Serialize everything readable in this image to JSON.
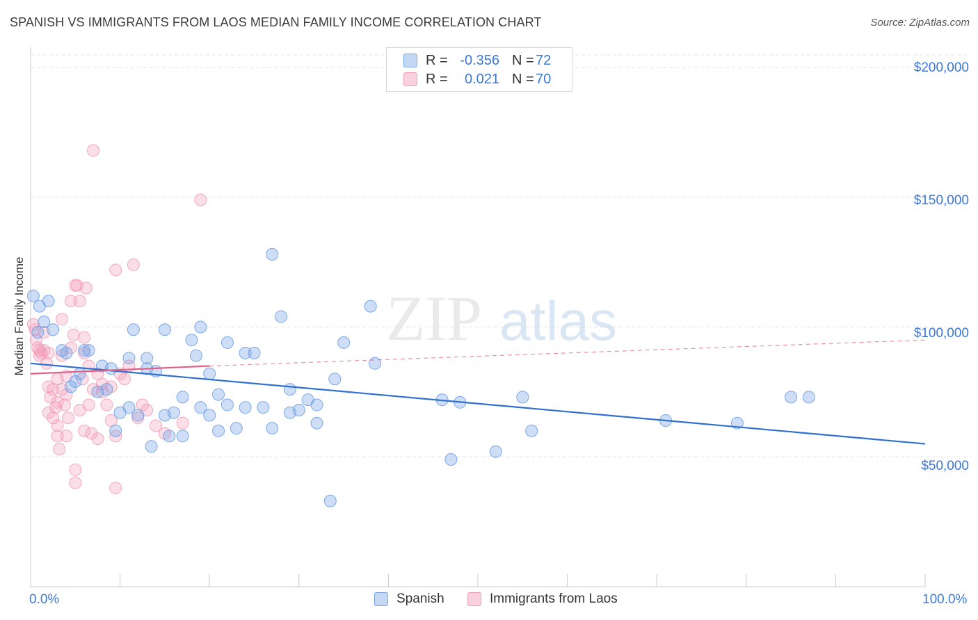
{
  "title": "SPANISH VS IMMIGRANTS FROM LAOS MEDIAN FAMILY INCOME CORRELATION CHART",
  "source": "Source: ZipAtlas.com",
  "watermark": {
    "zip": "ZIP",
    "atlas": "atlas"
  },
  "legend_top": [
    {
      "r_label": "R =",
      "r_value": "-0.356",
      "n_label": "N =",
      "n_value": "72"
    },
    {
      "r_label": "R =",
      "r_value": "0.021",
      "n_label": "N =",
      "n_value": "70"
    }
  ],
  "legend_bottom": [
    {
      "label": "Spanish"
    },
    {
      "label": "Immigrants from Laos"
    }
  ],
  "axis": {
    "ylabel": "Median Family Income",
    "y_ticks": [
      "$200,000",
      "$150,000",
      "$100,000",
      "$50,000"
    ],
    "x_min_label": "0.0%",
    "x_max_label": "100.0%"
  },
  "colors": {
    "spanish": "#6fa0e6",
    "spanish_line": "#2f6fd0",
    "laos": "#f29bb6",
    "laos_line": "#e0608a",
    "accent": "#3b78d8"
  },
  "chart_data": {
    "type": "scatter",
    "title": "SPANISH VS IMMIGRANTS FROM LAOS MEDIAN FAMILY INCOME CORRELATION CHART",
    "xlabel": "",
    "ylabel": "Median Family Income",
    "xlim": [
      0,
      100
    ],
    "ylim": [
      0,
      210000
    ],
    "grid": true,
    "legend_position": "top-center",
    "series": [
      {
        "name": "Spanish",
        "r": -0.356,
        "n": 72,
        "trend": {
          "x0": 0,
          "y0": 86000,
          "x1": 100,
          "y1": 55000
        },
        "points": [
          [
            0.3,
            112000
          ],
          [
            1.0,
            108000
          ],
          [
            1.5,
            102000
          ],
          [
            2.0,
            110000
          ],
          [
            2.5,
            99000
          ],
          [
            0.8,
            98000
          ],
          [
            3.5,
            91000
          ],
          [
            4.0,
            90000
          ],
          [
            4.5,
            77000
          ],
          [
            5.0,
            79000
          ],
          [
            5.5,
            82000
          ],
          [
            6.0,
            91000
          ],
          [
            6.5,
            91000
          ],
          [
            7.5,
            75000
          ],
          [
            8.0,
            85000
          ],
          [
            8.5,
            76000
          ],
          [
            9.0,
            84000
          ],
          [
            9.5,
            60000
          ],
          [
            10,
            67000
          ],
          [
            11,
            88000
          ],
          [
            11,
            69000
          ],
          [
            11.5,
            99000
          ],
          [
            12,
            66000
          ],
          [
            13,
            84000
          ],
          [
            13,
            88000
          ],
          [
            13.5,
            54000
          ],
          [
            14,
            83000
          ],
          [
            15,
            66000
          ],
          [
            15,
            99000
          ],
          [
            15.5,
            58000
          ],
          [
            16,
            67000
          ],
          [
            17,
            58000
          ],
          [
            17,
            73000
          ],
          [
            18,
            95000
          ],
          [
            18.5,
            89000
          ],
          [
            19,
            69000
          ],
          [
            19,
            100000
          ],
          [
            20,
            82000
          ],
          [
            20,
            66000
          ],
          [
            21,
            74000
          ],
          [
            21,
            60000
          ],
          [
            22,
            70000
          ],
          [
            22,
            94000
          ],
          [
            23,
            61000
          ],
          [
            24,
            69000
          ],
          [
            24,
            90000
          ],
          [
            25,
            90000
          ],
          [
            26,
            69000
          ],
          [
            27,
            61000
          ],
          [
            27,
            128000
          ],
          [
            28,
            104000
          ],
          [
            29,
            76000
          ],
          [
            29,
            67000
          ],
          [
            30,
            68000
          ],
          [
            31,
            72000
          ],
          [
            32,
            63000
          ],
          [
            32,
            70000
          ],
          [
            33.5,
            33000
          ],
          [
            34,
            80000
          ],
          [
            35,
            94000
          ],
          [
            38,
            108000
          ],
          [
            38.5,
            86000
          ],
          [
            46,
            72000
          ],
          [
            47,
            49000
          ],
          [
            48,
            71000
          ],
          [
            52,
            52000
          ],
          [
            55,
            73000
          ],
          [
            56,
            60000
          ],
          [
            71,
            64000
          ],
          [
            79,
            63000
          ],
          [
            85,
            73000
          ],
          [
            87,
            73000
          ]
        ]
      },
      {
        "name": "Immigrants from Laos",
        "r": 0.021,
        "n": 70,
        "trend": {
          "x0": 0,
          "y0": 82000,
          "x1": 20,
          "y1": 85000,
          "dashed_to": {
            "x": 100,
            "y": 95000
          }
        },
        "points": [
          [
            0.3,
            101000
          ],
          [
            0.5,
            99000
          ],
          [
            0.6,
            95000
          ],
          [
            0.8,
            92000
          ],
          [
            1.0,
            89000
          ],
          [
            1.0,
            91000
          ],
          [
            1.2,
            90000
          ],
          [
            1.5,
            91000
          ],
          [
            1.5,
            98000
          ],
          [
            1.8,
            86000
          ],
          [
            2.0,
            90000
          ],
          [
            2.0,
            77000
          ],
          [
            2.2,
            73000
          ],
          [
            2.5,
            76000
          ],
          [
            2.5,
            65000
          ],
          [
            2.8,
            69000
          ],
          [
            3.0,
            80000
          ],
          [
            3.0,
            58000
          ],
          [
            3.0,
            62000
          ],
          [
            3.2,
            53000
          ],
          [
            3.5,
            76000
          ],
          [
            3.5,
            89000
          ],
          [
            3.5,
            103000
          ],
          [
            3.8,
            70000
          ],
          [
            4.0,
            74000
          ],
          [
            4.0,
            58000
          ],
          [
            4.2,
            65000
          ],
          [
            4.5,
            92000
          ],
          [
            4.5,
            110000
          ],
          [
            4.8,
            97000
          ],
          [
            5.0,
            116000
          ],
          [
            5.0,
            45000
          ],
          [
            5.0,
            40000
          ],
          [
            5.2,
            116000
          ],
          [
            5.5,
            110000
          ],
          [
            5.5,
            68000
          ],
          [
            5.8,
            80000
          ],
          [
            6.0,
            60000
          ],
          [
            6.0,
            96000
          ],
          [
            6.2,
            115000
          ],
          [
            6.5,
            70000
          ],
          [
            6.5,
            85000
          ],
          [
            6.8,
            59000
          ],
          [
            7.0,
            76000
          ],
          [
            7.0,
            168000
          ],
          [
            7.5,
            82000
          ],
          [
            7.5,
            57000
          ],
          [
            8.0,
            78000
          ],
          [
            8.0,
            75000
          ],
          [
            8.5,
            70000
          ],
          [
            9.0,
            77000
          ],
          [
            9.0,
            64000
          ],
          [
            9.5,
            122000
          ],
          [
            9.5,
            58000
          ],
          [
            9.5,
            38000
          ],
          [
            10,
            82000
          ],
          [
            10.5,
            80000
          ],
          [
            11,
            85000
          ],
          [
            11.5,
            124000
          ],
          [
            12,
            65000
          ],
          [
            12.5,
            70000
          ],
          [
            13,
            68000
          ],
          [
            14,
            62000
          ],
          [
            15,
            59000
          ],
          [
            17,
            63000
          ],
          [
            19,
            149000
          ],
          [
            2.0,
            67000
          ],
          [
            3.0,
            71000
          ],
          [
            4.0,
            81000
          ],
          [
            6.0,
            90000
          ]
        ]
      }
    ]
  }
}
